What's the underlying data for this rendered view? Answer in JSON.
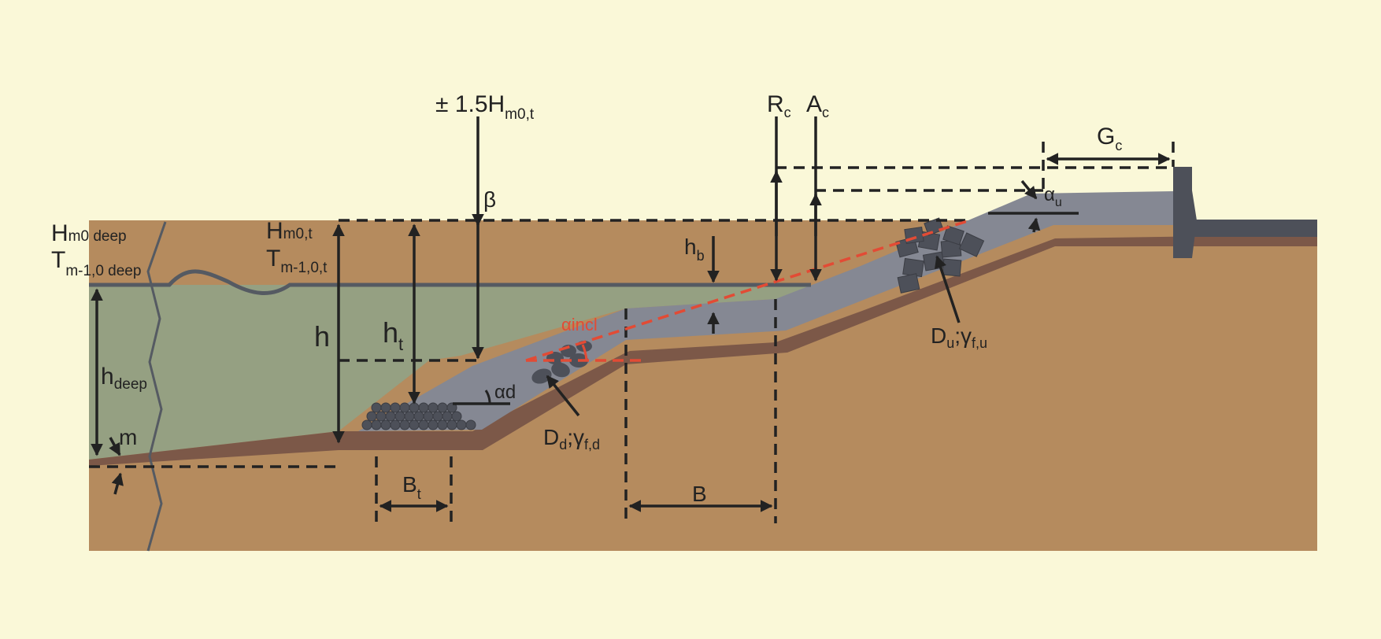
{
  "colors": {
    "background": "#faf8d8",
    "soil": "#b58b5e",
    "clay_layer": "#7c5848",
    "water": "#95a082",
    "armour": "#858893",
    "rock": "#4d5059",
    "dimension_lines": "#222222",
    "accent_red": "#e24b35"
  },
  "labels": {
    "hm0_deep": {
      "main": "H",
      "sub": "m0 deep"
    },
    "tm_deep": {
      "main": "T",
      "sub": "m-1,0 deep"
    },
    "h_deep": {
      "main": "h",
      "sub": "deep"
    },
    "m": "m",
    "hm0_t": {
      "main": "H",
      "sub": "m0,t"
    },
    "tm_t": {
      "main": "T",
      "sub": "m-1,0,t"
    },
    "h": "h",
    "ht": {
      "main": "h",
      "sub": "t"
    },
    "bt": {
      "main": "B",
      "sub": "t"
    },
    "plus_minus": {
      "main": "± 1.5H",
      "sub": "m0,t"
    },
    "beta": "β",
    "alpha_d": "αd",
    "dd": {
      "main": "D",
      "sub1": "d",
      "mid": ";γ",
      "sub2": "f,d"
    },
    "alpha_incl": "αincl",
    "hb": {
      "main": "h",
      "sub": "b"
    },
    "b": "B",
    "rc": {
      "main": "R",
      "sub": "c"
    },
    "ac": {
      "main": "A",
      "sub": "c"
    },
    "gc": {
      "main": "G",
      "sub": "c"
    },
    "alpha_u": {
      "main": "α",
      "sub": "u"
    },
    "du": {
      "main": "D",
      "sub1": "u",
      "mid": ";γ",
      "sub2": "f,u"
    }
  }
}
